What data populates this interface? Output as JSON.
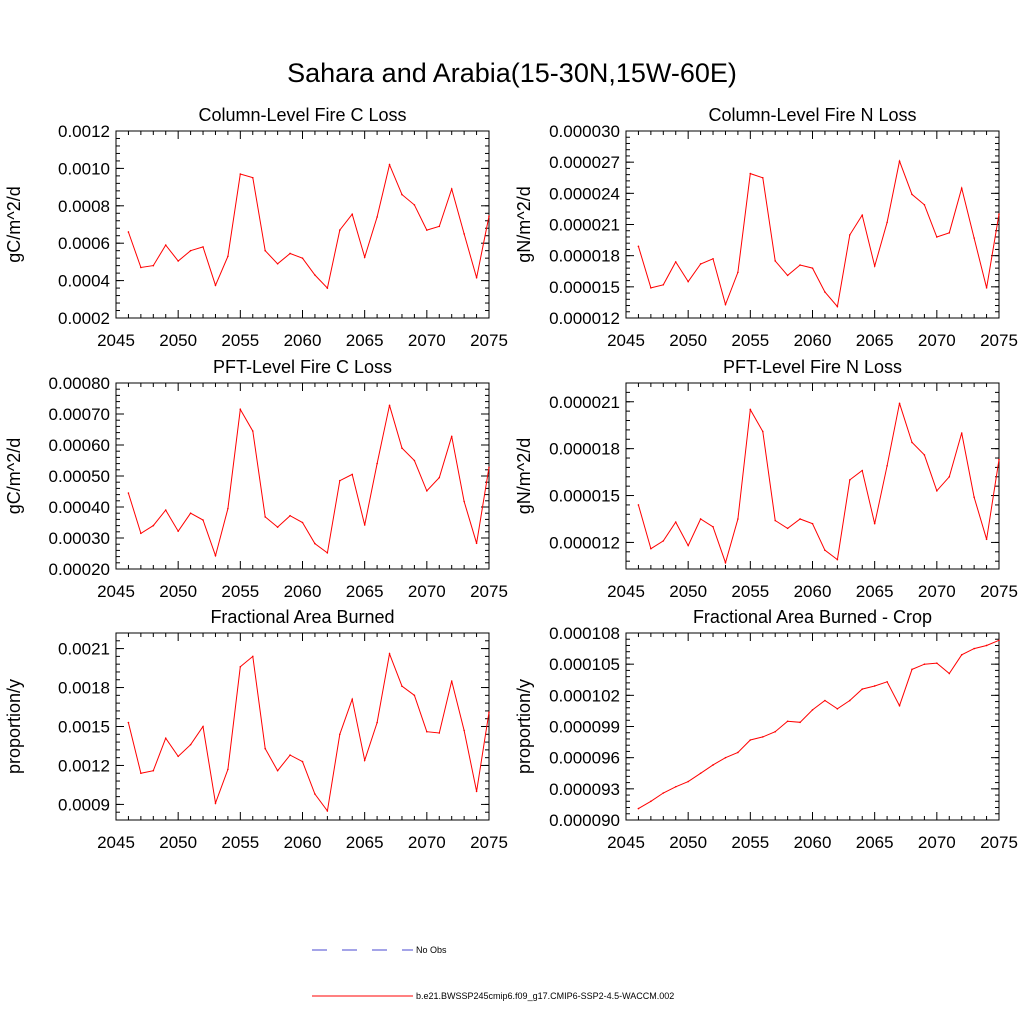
{
  "title": "Sahara and Arabia(15-30N,15W-60E)",
  "legend": [
    {
      "label": "No Obs",
      "color": "#4a4ad0",
      "style": "dashed"
    },
    {
      "label": "b.e21.BWSSP245cmip6.f09_g17.CMIP6-SSP2-4.5-WACCM.002",
      "color": "#ff0000",
      "style": "solid"
    }
  ],
  "chart_data": [
    {
      "type": "line",
      "title": "Column-Level Fire C Loss",
      "ylabel": "gC/m^2/d",
      "xlim": [
        2045,
        2075
      ],
      "ylim": [
        0.0002,
        0.0012
      ],
      "xticks": [
        "2045",
        "2050",
        "2055",
        "2060",
        "2065",
        "2070",
        "2075"
      ],
      "yticks": [
        "0.0002",
        "0.0004",
        "0.0006",
        "0.0008",
        "0.0010",
        "0.0012"
      ],
      "x": [
        2046,
        2047,
        2048,
        2049,
        2050,
        2051,
        2052,
        2053,
        2054,
        2055,
        2056,
        2057,
        2058,
        2059,
        2060,
        2061,
        2062,
        2063,
        2064,
        2065,
        2066,
        2067,
        2068,
        2069,
        2070,
        2071,
        2072,
        2073,
        2074,
        2075
      ],
      "series": [
        {
          "color": "#ff0000",
          "values": [
            0.00066,
            0.00047,
            0.00048,
            0.00059,
            0.000505,
            0.00056,
            0.00058,
            0.000375,
            0.00053,
            0.00097,
            0.00095,
            0.00056,
            0.00049,
            0.000545,
            0.00052,
            0.00043,
            0.00036,
            0.00067,
            0.000755,
            0.000525,
            0.00074,
            0.00102,
            0.00086,
            0.000805,
            0.00067,
            0.00069,
            0.00089,
            0.00065,
            0.000415,
            0.000745
          ]
        }
      ]
    },
    {
      "type": "line",
      "title": "Column-Level Fire N Loss",
      "ylabel": "gN/m^2/d",
      "xlim": [
        2045,
        2075
      ],
      "ylim": [
        1.2e-05,
        3e-05
      ],
      "xticks": [
        "2045",
        "2050",
        "2055",
        "2060",
        "2065",
        "2070",
        "2075"
      ],
      "yticks": [
        "0.000012",
        "0.000015",
        "0.000018",
        "0.000021",
        "0.000024",
        "0.000027",
        "0.000030"
      ],
      "x": [
        2046,
        2047,
        2048,
        2049,
        2050,
        2051,
        2052,
        2053,
        2054,
        2055,
        2056,
        2057,
        2058,
        2059,
        2060,
        2061,
        2062,
        2063,
        2064,
        2065,
        2066,
        2067,
        2068,
        2069,
        2070,
        2071,
        2072,
        2073,
        2074,
        2075
      ],
      "series": [
        {
          "color": "#ff0000",
          "values": [
            1.89e-05,
            1.49e-05,
            1.52e-05,
            1.74e-05,
            1.55e-05,
            1.72e-05,
            1.77e-05,
            1.33e-05,
            1.64e-05,
            2.59e-05,
            2.55e-05,
            1.75e-05,
            1.61e-05,
            1.71e-05,
            1.68e-05,
            1.45e-05,
            1.31e-05,
            2e-05,
            2.19e-05,
            1.7e-05,
            2.12e-05,
            2.71e-05,
            2.39e-05,
            2.29e-05,
            1.98e-05,
            2.02e-05,
            2.45e-05,
            1.97e-05,
            1.49e-05,
            2.2e-05
          ]
        }
      ]
    },
    {
      "type": "line",
      "title": "PFT-Level Fire C Loss",
      "ylabel": "gC/m^2/d",
      "xlim": [
        2045,
        2075
      ],
      "ylim": [
        0.0002,
        0.0008
      ],
      "xticks": [
        "2045",
        "2050",
        "2055",
        "2060",
        "2065",
        "2070",
        "2075"
      ],
      "yticks": [
        "0.00020",
        "0.00030",
        "0.00040",
        "0.00050",
        "0.00060",
        "0.00070",
        "0.00080"
      ],
      "x": [
        2046,
        2047,
        2048,
        2049,
        2050,
        2051,
        2052,
        2053,
        2054,
        2055,
        2056,
        2057,
        2058,
        2059,
        2060,
        2061,
        2062,
        2063,
        2064,
        2065,
        2066,
        2067,
        2068,
        2069,
        2070,
        2071,
        2072,
        2073,
        2074,
        2075
      ],
      "series": [
        {
          "color": "#ff0000",
          "values": [
            0.000445,
            0.000315,
            0.00034,
            0.00039,
            0.000322,
            0.00038,
            0.000358,
            0.000243,
            0.000395,
            0.000715,
            0.000645,
            0.000368,
            0.000335,
            0.000372,
            0.00035,
            0.000282,
            0.000252,
            0.000485,
            0.000505,
            0.000342,
            0.00054,
            0.000728,
            0.00059,
            0.00055,
            0.000452,
            0.000495,
            0.000628,
            0.000418,
            0.000283,
            0.000528
          ]
        }
      ]
    },
    {
      "type": "line",
      "title": "PFT-Level Fire N Loss",
      "ylabel": "gN/m^2/d",
      "xlim": [
        2045,
        2075
      ],
      "ylim": [
        1.03e-05,
        2.22e-05
      ],
      "xticks": [
        "2045",
        "2050",
        "2055",
        "2060",
        "2065",
        "2070",
        "2075"
      ],
      "yticks": [
        "0.000012",
        "0.000015",
        "0.000018",
        "0.000021"
      ],
      "x": [
        2046,
        2047,
        2048,
        2049,
        2050,
        2051,
        2052,
        2053,
        2054,
        2055,
        2056,
        2057,
        2058,
        2059,
        2060,
        2061,
        2062,
        2063,
        2064,
        2065,
        2066,
        2067,
        2068,
        2069,
        2070,
        2071,
        2072,
        2073,
        2074,
        2075
      ],
      "series": [
        {
          "color": "#ff0000",
          "values": [
            1.44e-05,
            1.16e-05,
            1.21e-05,
            1.33e-05,
            1.18e-05,
            1.35e-05,
            1.3e-05,
            1.07e-05,
            1.35e-05,
            2.05e-05,
            1.91e-05,
            1.34e-05,
            1.29e-05,
            1.35e-05,
            1.32e-05,
            1.15e-05,
            1.09e-05,
            1.6e-05,
            1.66e-05,
            1.32e-05,
            1.69e-05,
            2.09e-05,
            1.84e-05,
            1.76e-05,
            1.53e-05,
            1.62e-05,
            1.9e-05,
            1.49e-05,
            1.22e-05,
            1.73e-05
          ]
        }
      ]
    },
    {
      "type": "line",
      "title": "Fractional Area Burned",
      "ylabel": "proportion/y",
      "xlim": [
        2045,
        2075
      ],
      "ylim": [
        0.00078,
        0.00222
      ],
      "xticks": [
        "2045",
        "2050",
        "2055",
        "2060",
        "2065",
        "2070",
        "2075"
      ],
      "yticks": [
        "0.0009",
        "0.0012",
        "0.0015",
        "0.0018",
        "0.0021"
      ],
      "x": [
        2046,
        2047,
        2048,
        2049,
        2050,
        2051,
        2052,
        2053,
        2054,
        2055,
        2056,
        2057,
        2058,
        2059,
        2060,
        2061,
        2062,
        2063,
        2064,
        2065,
        2066,
        2067,
        2068,
        2069,
        2070,
        2071,
        2072,
        2073,
        2074,
        2075
      ],
      "series": [
        {
          "color": "#ff0000",
          "values": [
            0.00153,
            0.00114,
            0.00116,
            0.00141,
            0.00127,
            0.00136,
            0.0015,
            0.00091,
            0.00117,
            0.00196,
            0.00204,
            0.00133,
            0.00116,
            0.00128,
            0.00123,
            0.00098,
            0.00085,
            0.00144,
            0.00171,
            0.00124,
            0.00153,
            0.00206,
            0.00181,
            0.00174,
            0.00146,
            0.00145,
            0.00185,
            0.00147,
            0.001,
            0.00161
          ]
        }
      ]
    },
    {
      "type": "line",
      "title": "Fractional Area Burned - Crop",
      "ylabel": "proportion/y",
      "xlim": [
        2045,
        2075
      ],
      "ylim": [
        9e-05,
        0.000108
      ],
      "xticks": [
        "2045",
        "2050",
        "2055",
        "2060",
        "2065",
        "2070",
        "2075"
      ],
      "yticks": [
        "0.000090",
        "0.000093",
        "0.000096",
        "0.000099",
        "0.000102",
        "0.000105",
        "0.000108"
      ],
      "x": [
        2046,
        2047,
        2048,
        2049,
        2050,
        2051,
        2052,
        2053,
        2054,
        2055,
        2056,
        2057,
        2058,
        2059,
        2060,
        2061,
        2062,
        2063,
        2064,
        2065,
        2066,
        2067,
        2068,
        2069,
        2070,
        2071,
        2072,
        2073,
        2074,
        2075
      ],
      "series": [
        {
          "color": "#ff0000",
          "values": [
            9.11e-05,
            9.18e-05,
            9.26e-05,
            9.32e-05,
            9.37e-05,
            9.45e-05,
            9.53e-05,
            9.6e-05,
            9.65e-05,
            9.77e-05,
            9.8e-05,
            9.85e-05,
            9.95e-05,
            9.94e-05,
            0.0001006,
            0.0001015,
            0.0001007,
            0.0001015,
            0.0001026,
            0.0001029,
            0.0001033,
            0.000101,
            0.0001045,
            0.000105,
            0.0001051,
            0.0001041,
            0.0001059,
            0.0001065,
            0.0001068,
            0.0001073
          ]
        }
      ]
    }
  ]
}
